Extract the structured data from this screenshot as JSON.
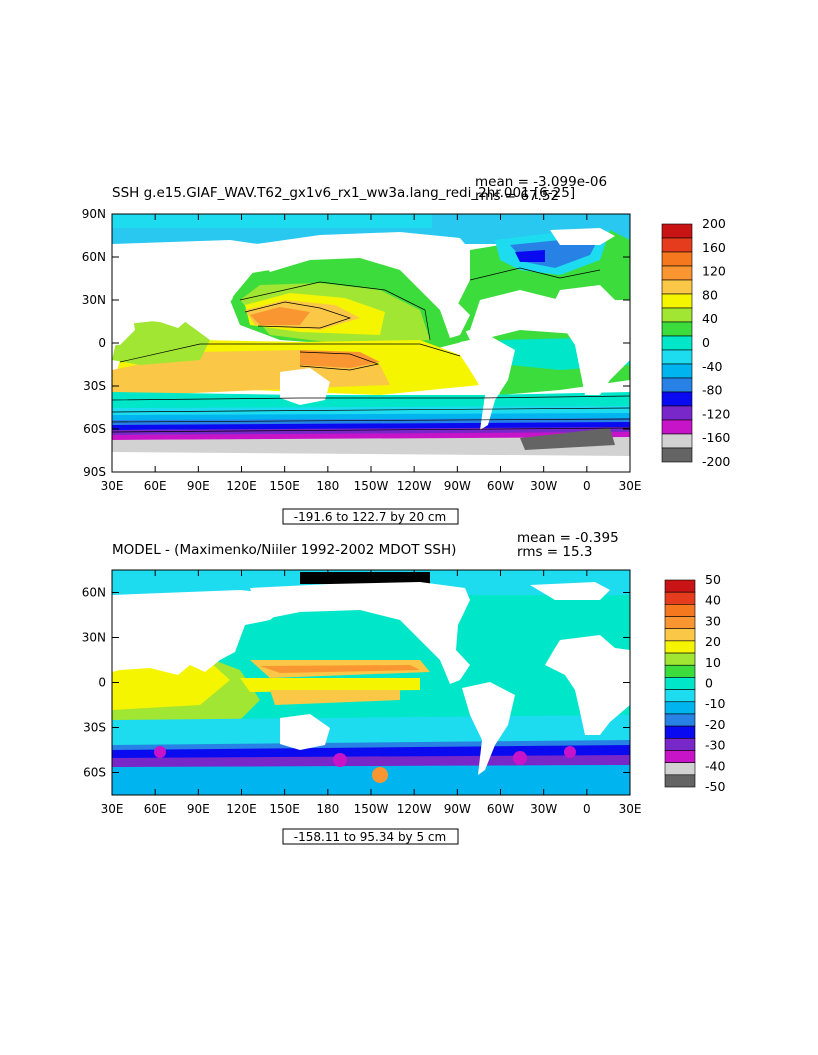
{
  "chart_data": [
    {
      "type": "heatmap",
      "title": "SSH  g.e15.GIAF_WAV.T62_gx1v6_rx1_ww3a.lang_redi_2hr.001  [6-25]",
      "stats": {
        "mean": "mean = -3.099e-06",
        "rms": "rms = 67.52"
      },
      "x_ticks": [
        "30E",
        "60E",
        "90E",
        "120E",
        "150E",
        "180",
        "150W",
        "120W",
        "90W",
        "60W",
        "30W",
        "0",
        "30E"
      ],
      "y_ticks": [
        "90N",
        "60N",
        "30N",
        "0",
        "30S",
        "60S",
        "90S"
      ],
      "ylim": [
        -90,
        90
      ],
      "xlim": [
        30,
        390
      ],
      "contour_info": "-191.6 to 122.7 by 20 cm",
      "colorbar": {
        "labels": [
          "200",
          "160",
          "120",
          "80",
          "40",
          "0",
          "-40",
          "-80",
          "-120",
          "-160",
          "-200"
        ],
        "colors": [
          "#c81414",
          "#e63c1e",
          "#f5781e",
          "#fa9632",
          "#fac846",
          "#f5f500",
          "#a0e632",
          "#3cdc3c",
          "#00e6c8",
          "#1edcf0",
          "#00b4f0",
          "#2882e6",
          "#0a0af0",
          "#7828c8",
          "#c814c8",
          "#d2d2d2",
          "#646464"
        ]
      }
    },
    {
      "type": "heatmap",
      "title": "MODEL - (Maximenko/Niiler 1992-2002 MDOT SSH)",
      "stats": {
        "mean": "mean = -0.395",
        "rms": "rms = 15.3"
      },
      "x_ticks": [
        "30E",
        "60E",
        "90E",
        "120E",
        "150E",
        "180",
        "150W",
        "120W",
        "90W",
        "60W",
        "30W",
        "0",
        "30E"
      ],
      "y_ticks": [
        "60N",
        "30N",
        "0",
        "30S",
        "60S"
      ],
      "ylim": [
        -75,
        75
      ],
      "xlim": [
        30,
        390
      ],
      "contour_info": "-158.11 to 95.34 by 5 cm",
      "colorbar": {
        "labels": [
          "50",
          "40",
          "30",
          "20",
          "10",
          "0",
          "-10",
          "-20",
          "-30",
          "-40",
          "-50"
        ],
        "colors": [
          "#c81414",
          "#e63c1e",
          "#f5781e",
          "#fa9632",
          "#fac846",
          "#f5f500",
          "#a0e632",
          "#3cdc3c",
          "#00e6c8",
          "#1edcf0",
          "#00b4f0",
          "#2882e6",
          "#0a0af0",
          "#7828c8",
          "#c814c8",
          "#d2d2d2",
          "#646464"
        ]
      }
    }
  ]
}
